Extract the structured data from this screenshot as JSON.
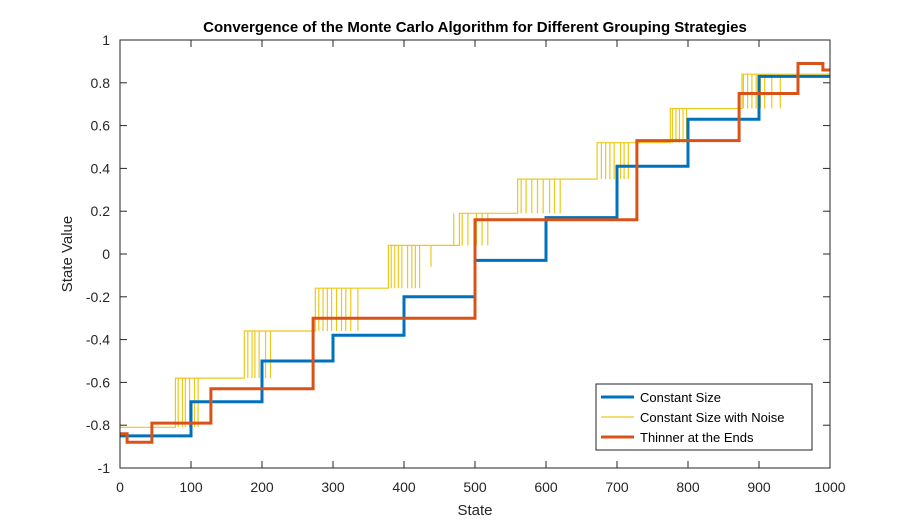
{
  "chart_data": {
    "type": "line",
    "title": "Convergence of the Monte Carlo Algorithm for Different Grouping Strategies",
    "xlabel": "State",
    "ylabel": "State Value",
    "xlim": [
      0,
      1000
    ],
    "ylim": [
      -1,
      1
    ],
    "xticks": [
      0,
      100,
      200,
      300,
      400,
      500,
      600,
      700,
      800,
      900,
      1000
    ],
    "yticks": [
      -1,
      -0.8,
      -0.6,
      -0.4,
      -0.2,
      0,
      0.2,
      0.4,
      0.6,
      0.8,
      1
    ],
    "xtick_labels": [
      "0",
      "100",
      "200",
      "300",
      "400",
      "500",
      "600",
      "700",
      "800",
      "900",
      "1000"
    ],
    "ytick_labels": [
      "-1",
      "-0.8",
      "-0.6",
      "-0.4",
      "-0.2",
      "0",
      "0.2",
      "0.4",
      "0.6",
      "0.8",
      "1"
    ],
    "grid": false,
    "legend_position": "bottom-right",
    "series": [
      {
        "name": "Constant Size",
        "color": "#0072BD",
        "x": [
          0,
          100,
          100,
          200,
          200,
          300,
          300,
          400,
          400,
          500,
          500,
          600,
          600,
          700,
          700,
          800,
          800,
          900,
          900,
          1000
        ],
        "y": [
          -0.85,
          -0.85,
          -0.69,
          -0.69,
          -0.5,
          -0.5,
          -0.38,
          -0.38,
          -0.2,
          -0.2,
          -0.03,
          -0.03,
          0.17,
          0.17,
          0.41,
          0.41,
          0.63,
          0.63,
          0.83,
          0.83
        ]
      },
      {
        "name": "Constant Size with Noise",
        "color": "#EDC81A",
        "x": [
          0,
          78,
          78,
          175,
          175,
          275,
          275,
          378,
          378,
          478,
          478,
          560,
          560,
          672,
          672,
          775,
          775,
          876,
          876,
          1000
        ],
        "y": [
          -0.81,
          -0.81,
          -0.58,
          -0.58,
          -0.36,
          -0.36,
          -0.16,
          -0.16,
          0.04,
          0.04,
          0.19,
          0.19,
          0.35,
          0.35,
          0.52,
          0.52,
          0.68,
          0.68,
          0.84,
          0.84
        ],
        "spikes": [
          {
            "x": 82,
            "from": -0.81,
            "to": -0.58
          },
          {
            "x": 88,
            "from": -0.81,
            "to": -0.58
          },
          {
            "x": 92,
            "from": -0.81,
            "to": -0.58
          },
          {
            "x": 98,
            "from": -0.81,
            "to": -0.58
          },
          {
            "x": 105,
            "from": -0.58,
            "to": -0.81
          },
          {
            "x": 110,
            "from": -0.58,
            "to": -0.81
          },
          {
            "x": 180,
            "from": -0.58,
            "to": -0.36
          },
          {
            "x": 186,
            "from": -0.58,
            "to": -0.36
          },
          {
            "x": 190,
            "from": -0.58,
            "to": -0.36
          },
          {
            "x": 196,
            "from": -0.58,
            "to": -0.36
          },
          {
            "x": 205,
            "from": -0.36,
            "to": -0.58
          },
          {
            "x": 212,
            "from": -0.36,
            "to": -0.58
          },
          {
            "x": 280,
            "from": -0.36,
            "to": -0.16
          },
          {
            "x": 286,
            "from": -0.36,
            "to": -0.16
          },
          {
            "x": 292,
            "from": -0.36,
            "to": -0.16
          },
          {
            "x": 298,
            "from": -0.36,
            "to": -0.16
          },
          {
            "x": 305,
            "from": -0.16,
            "to": -0.36
          },
          {
            "x": 312,
            "from": -0.16,
            "to": -0.36
          },
          {
            "x": 318,
            "from": -0.16,
            "to": -0.36
          },
          {
            "x": 325,
            "from": -0.16,
            "to": -0.36
          },
          {
            "x": 335,
            "from": -0.16,
            "to": -0.36
          },
          {
            "x": 382,
            "from": -0.16,
            "to": 0.04
          },
          {
            "x": 387,
            "from": -0.16,
            "to": 0.04
          },
          {
            "x": 392,
            "from": -0.16,
            "to": 0.04
          },
          {
            "x": 397,
            "from": -0.16,
            "to": 0.04
          },
          {
            "x": 405,
            "from": 0.04,
            "to": -0.16
          },
          {
            "x": 411,
            "from": 0.04,
            "to": -0.16
          },
          {
            "x": 416,
            "from": 0.04,
            "to": -0.16
          },
          {
            "x": 422,
            "from": 0.04,
            "to": -0.16
          },
          {
            "x": 438,
            "from": 0.04,
            "to": -0.06
          },
          {
            "x": 470,
            "from": 0.04,
            "to": 0.19
          },
          {
            "x": 482,
            "from": 0.19,
            "to": 0.04
          },
          {
            "x": 490,
            "from": 0.19,
            "to": 0.04
          },
          {
            "x": 502,
            "from": 0.19,
            "to": 0.04
          },
          {
            "x": 510,
            "from": 0.19,
            "to": 0.04
          },
          {
            "x": 518,
            "from": 0.19,
            "to": 0.04
          },
          {
            "x": 565,
            "from": 0.19,
            "to": 0.35
          },
          {
            "x": 572,
            "from": 0.19,
            "to": 0.35
          },
          {
            "x": 580,
            "from": 0.19,
            "to": 0.35
          },
          {
            "x": 588,
            "from": 0.19,
            "to": 0.35
          },
          {
            "x": 596,
            "from": 0.19,
            "to": 0.35
          },
          {
            "x": 605,
            "from": 0.35,
            "to": 0.19
          },
          {
            "x": 612,
            "from": 0.35,
            "to": 0.19
          },
          {
            "x": 620,
            "from": 0.35,
            "to": 0.19
          },
          {
            "x": 678,
            "from": 0.35,
            "to": 0.52
          },
          {
            "x": 684,
            "from": 0.35,
            "to": 0.52
          },
          {
            "x": 690,
            "from": 0.35,
            "to": 0.52
          },
          {
            "x": 696,
            "from": 0.35,
            "to": 0.52
          },
          {
            "x": 705,
            "from": 0.52,
            "to": 0.35
          },
          {
            "x": 710,
            "from": 0.52,
            "to": 0.35
          },
          {
            "x": 716,
            "from": 0.52,
            "to": 0.35
          },
          {
            "x": 778,
            "from": 0.52,
            "to": 0.68
          },
          {
            "x": 783,
            "from": 0.52,
            "to": 0.68
          },
          {
            "x": 788,
            "from": 0.52,
            "to": 0.68
          },
          {
            "x": 793,
            "from": 0.52,
            "to": 0.68
          },
          {
            "x": 798,
            "from": 0.52,
            "to": 0.68
          },
          {
            "x": 878,
            "from": 0.68,
            "to": 0.84
          },
          {
            "x": 884,
            "from": 0.68,
            "to": 0.84
          },
          {
            "x": 890,
            "from": 0.84,
            "to": 0.68
          },
          {
            "x": 896,
            "from": 0.84,
            "to": 0.68
          },
          {
            "x": 902,
            "from": 0.84,
            "to": 0.68
          },
          {
            "x": 908,
            "from": 0.84,
            "to": 0.68
          },
          {
            "x": 918,
            "from": 0.84,
            "to": 0.68
          },
          {
            "x": 930,
            "from": 0.84,
            "to": 0.68
          }
        ]
      },
      {
        "name": "Thinner at the Ends",
        "color": "#D95319",
        "x": [
          0,
          10,
          10,
          45,
          45,
          128,
          128,
          272,
          272,
          500,
          500,
          728,
          728,
          872,
          872,
          955,
          955,
          990,
          990,
          1000
        ],
        "y": [
          -0.84,
          -0.84,
          -0.88,
          -0.88,
          -0.79,
          -0.79,
          -0.63,
          -0.63,
          -0.3,
          -0.3,
          0.16,
          0.16,
          0.53,
          0.53,
          0.75,
          0.75,
          0.89,
          0.89,
          0.86,
          0.86
        ]
      }
    ]
  }
}
